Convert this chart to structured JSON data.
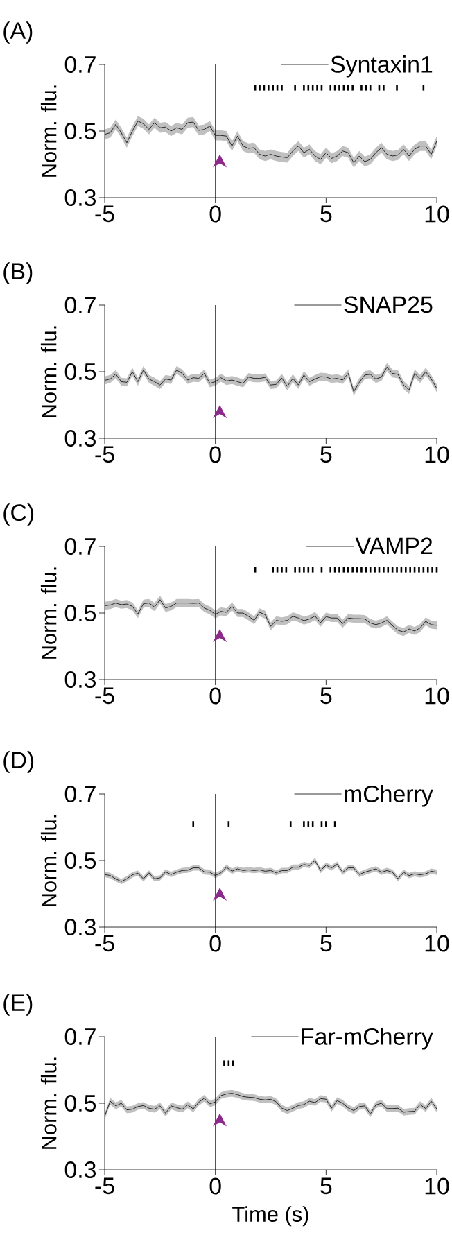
{
  "chart_data": [
    {
      "type": "line",
      "title": "(A)",
      "ylabel": "Norm. flu.",
      "x": [
        -5,
        -4.75,
        -4.5,
        -4.25,
        -4,
        -3.75,
        -3.5,
        -3.25,
        -3,
        -2.75,
        -2.5,
        -2.25,
        -2,
        -1.75,
        -1.5,
        -1.25,
        -1,
        -0.75,
        -0.5,
        -0.25,
        0,
        0.25,
        0.5,
        0.75,
        1,
        1.25,
        1.5,
        1.75,
        2,
        2.25,
        2.5,
        2.75,
        3,
        3.25,
        3.5,
        3.75,
        4,
        4.25,
        4.5,
        4.75,
        5,
        5.25,
        5.5,
        5.75,
        6,
        6.25,
        6.5,
        6.75,
        7,
        7.25,
        7.5,
        7.75,
        8,
        8.25,
        8.5,
        8.75,
        9,
        9.25,
        9.5,
        9.75,
        10
      ],
      "xlim": [
        -5,
        10
      ],
      "ylim": [
        0.3,
        0.7
      ],
      "xticks": [
        -5,
        0,
        5,
        10
      ],
      "yticks": [
        0.3,
        0.5,
        0.7
      ],
      "legend": "top right",
      "ref_lines": [
        {
          "axis": "x",
          "value": 0
        }
      ],
      "series": [
        {
          "name": "Syntaxin1",
          "color": "#000000",
          "values": [
            0.49,
            0.495,
            0.52,
            0.495,
            0.465,
            0.5,
            0.53,
            0.522,
            0.505,
            0.525,
            0.51,
            0.512,
            0.5,
            0.51,
            0.505,
            0.525,
            0.527,
            0.502,
            0.505,
            0.515,
            0.487,
            0.487,
            0.485,
            0.455,
            0.485,
            0.455,
            0.448,
            0.45,
            0.43,
            0.425,
            0.43,
            0.425,
            0.422,
            0.42,
            0.44,
            0.455,
            0.435,
            0.445,
            0.425,
            0.415,
            0.435,
            0.418,
            0.425,
            0.44,
            0.435,
            0.405,
            0.425,
            0.408,
            0.415,
            0.435,
            0.45,
            0.43,
            0.425,
            0.428,
            0.445,
            0.425,
            0.445,
            0.455,
            0.455,
            0.43,
            0.47
          ],
          "lower": [
            0.475,
            0.48,
            0.505,
            0.48,
            0.45,
            0.485,
            0.515,
            0.507,
            0.49,
            0.51,
            0.495,
            0.497,
            0.485,
            0.495,
            0.49,
            0.51,
            0.512,
            0.487,
            0.49,
            0.5,
            0.472,
            0.472,
            0.47,
            0.44,
            0.47,
            0.44,
            0.433,
            0.435,
            0.415,
            0.41,
            0.415,
            0.41,
            0.407,
            0.405,
            0.425,
            0.44,
            0.42,
            0.43,
            0.41,
            0.4,
            0.42,
            0.403,
            0.41,
            0.425,
            0.42,
            0.39,
            0.41,
            0.393,
            0.4,
            0.42,
            0.435,
            0.415,
            0.41,
            0.413,
            0.43,
            0.41,
            0.43,
            0.44,
            0.44,
            0.415,
            0.455
          ],
          "upper": [
            0.505,
            0.51,
            0.535,
            0.51,
            0.48,
            0.515,
            0.545,
            0.537,
            0.52,
            0.54,
            0.525,
            0.527,
            0.515,
            0.525,
            0.52,
            0.54,
            0.542,
            0.517,
            0.52,
            0.53,
            0.502,
            0.502,
            0.5,
            0.47,
            0.5,
            0.47,
            0.463,
            0.465,
            0.445,
            0.44,
            0.445,
            0.44,
            0.437,
            0.435,
            0.455,
            0.47,
            0.45,
            0.46,
            0.44,
            0.43,
            0.45,
            0.433,
            0.44,
            0.455,
            0.45,
            0.42,
            0.44,
            0.423,
            0.43,
            0.45,
            0.465,
            0.445,
            0.44,
            0.443,
            0.46,
            0.44,
            0.46,
            0.47,
            0.47,
            0.445,
            0.485
          ]
        },
        {
          "type": "scatter",
          "color": "#000000",
          "x": [
            1.8,
            2.0,
            2.2,
            2.4,
            2.6,
            2.8,
            3.0,
            3.6,
            4.0,
            4.2,
            4.4,
            4.6,
            4.8,
            5.2,
            5.4,
            5.6,
            5.8,
            6.0,
            6.2,
            6.6,
            6.8,
            7.0,
            7.4,
            7.6,
            8.2,
            9.4
          ],
          "values": [
            0.63,
            0.63,
            0.63,
            0.63,
            0.63,
            0.63,
            0.63,
            0.63,
            0.63,
            0.63,
            0.63,
            0.63,
            0.63,
            0.63,
            0.63,
            0.63,
            0.63,
            0.63,
            0.63,
            0.63,
            0.63,
            0.63,
            0.63,
            0.63,
            0.63,
            0.63
          ]
        }
      ]
    },
    {
      "type": "line",
      "title": "(B)",
      "ylabel": "Norm. flu.",
      "x": [
        -5,
        -4.75,
        -4.5,
        -4.25,
        -4,
        -3.75,
        -3.5,
        -3.25,
        -3,
        -2.75,
        -2.5,
        -2.25,
        -2,
        -1.75,
        -1.5,
        -1.25,
        -1,
        -0.75,
        -0.5,
        -0.25,
        0,
        0.25,
        0.5,
        0.75,
        1,
        1.25,
        1.5,
        1.75,
        2,
        2.25,
        2.5,
        2.75,
        3,
        3.25,
        3.5,
        3.75,
        4,
        4.25,
        4.5,
        4.75,
        5,
        5.25,
        5.5,
        5.75,
        6,
        6.25,
        6.5,
        6.75,
        7,
        7.25,
        7.5,
        7.75,
        8,
        8.25,
        8.5,
        8.75,
        9,
        9.25,
        9.5,
        9.75,
        10
      ],
      "xlim": [
        -5,
        10
      ],
      "ylim": [
        0.3,
        0.7
      ],
      "xticks": [
        -5,
        0,
        5,
        10
      ],
      "yticks": [
        0.3,
        0.5,
        0.7
      ],
      "legend": "top right",
      "ref_lines": [
        {
          "axis": "x",
          "value": 0
        }
      ],
      "series": [
        {
          "name": "SNAP25",
          "color": "#000000",
          "values": [
            0.474,
            0.478,
            0.493,
            0.47,
            0.468,
            0.5,
            0.47,
            0.505,
            0.478,
            0.47,
            0.46,
            0.478,
            0.475,
            0.505,
            0.495,
            0.475,
            0.482,
            0.48,
            0.495,
            0.465,
            0.47,
            0.482,
            0.472,
            0.475,
            0.47,
            0.465,
            0.484,
            0.48,
            0.48,
            0.483,
            0.46,
            0.462,
            0.481,
            0.456,
            0.48,
            0.46,
            0.49,
            0.47,
            0.478,
            0.485,
            0.484,
            0.478,
            0.48,
            0.475,
            0.495,
            0.44,
            0.468,
            0.49,
            0.492,
            0.478,
            0.484,
            0.514,
            0.495,
            0.492,
            0.46,
            0.445,
            0.495,
            0.478,
            0.5,
            0.478,
            0.45
          ],
          "lower": [
            0.462,
            0.466,
            0.481,
            0.458,
            0.456,
            0.488,
            0.458,
            0.493,
            0.466,
            0.458,
            0.448,
            0.466,
            0.463,
            0.493,
            0.483,
            0.463,
            0.47,
            0.468,
            0.483,
            0.453,
            0.458,
            0.47,
            0.46,
            0.463,
            0.458,
            0.453,
            0.472,
            0.468,
            0.468,
            0.471,
            0.448,
            0.45,
            0.469,
            0.444,
            0.468,
            0.448,
            0.478,
            0.458,
            0.466,
            0.473,
            0.472,
            0.466,
            0.468,
            0.463,
            0.483,
            0.428,
            0.456,
            0.478,
            0.48,
            0.466,
            0.472,
            0.502,
            0.483,
            0.48,
            0.448,
            0.433,
            0.483,
            0.466,
            0.488,
            0.466,
            0.438
          ],
          "upper": [
            0.486,
            0.49,
            0.505,
            0.482,
            0.48,
            0.512,
            0.482,
            0.517,
            0.49,
            0.482,
            0.472,
            0.49,
            0.487,
            0.517,
            0.507,
            0.487,
            0.494,
            0.492,
            0.507,
            0.477,
            0.482,
            0.494,
            0.484,
            0.487,
            0.483,
            0.477,
            0.496,
            0.492,
            0.492,
            0.495,
            0.472,
            0.474,
            0.493,
            0.468,
            0.492,
            0.472,
            0.502,
            0.482,
            0.49,
            0.497,
            0.496,
            0.49,
            0.492,
            0.487,
            0.507,
            0.452,
            0.48,
            0.502,
            0.504,
            0.49,
            0.496,
            0.526,
            0.507,
            0.504,
            0.472,
            0.457,
            0.507,
            0.49,
            0.512,
            0.49,
            0.462
          ]
        }
      ]
    },
    {
      "type": "line",
      "title": "(C)",
      "ylabel": "Norm. flu.",
      "x": [
        -5,
        -4.75,
        -4.5,
        -4.25,
        -4,
        -3.75,
        -3.5,
        -3.25,
        -3,
        -2.75,
        -2.5,
        -2.25,
        -2,
        -1.75,
        -1.5,
        -1.25,
        -1,
        -0.75,
        -0.5,
        -0.25,
        0,
        0.25,
        0.5,
        0.75,
        1,
        1.25,
        1.5,
        1.75,
        2,
        2.25,
        2.5,
        2.75,
        3,
        3.25,
        3.5,
        3.75,
        4,
        4.25,
        4.5,
        4.75,
        5,
        5.25,
        5.5,
        5.75,
        6,
        6.25,
        6.5,
        6.75,
        7,
        7.25,
        7.5,
        7.75,
        8,
        8.25,
        8.5,
        8.75,
        9,
        9.25,
        9.5,
        9.75,
        10
      ],
      "xlim": [
        -5,
        10
      ],
      "ylim": [
        0.3,
        0.7
      ],
      "xticks": [
        -5,
        0,
        5,
        10
      ],
      "yticks": [
        0.3,
        0.5,
        0.7
      ],
      "legend": "top right",
      "ref_lines": [
        {
          "axis": "x",
          "value": 0
        }
      ],
      "series": [
        {
          "name": "VAMP2",
          "color": "#000000",
          "values": [
            0.522,
            0.524,
            0.53,
            0.525,
            0.527,
            0.52,
            0.497,
            0.528,
            0.53,
            0.518,
            0.54,
            0.515,
            0.52,
            0.53,
            0.53,
            0.53,
            0.529,
            0.53,
            0.515,
            0.508,
            0.496,
            0.505,
            0.502,
            0.52,
            0.5,
            0.5,
            0.49,
            0.478,
            0.502,
            0.495,
            0.46,
            0.478,
            0.475,
            0.478,
            0.49,
            0.485,
            0.477,
            0.482,
            0.491,
            0.471,
            0.489,
            0.485,
            0.485,
            0.468,
            0.485,
            0.483,
            0.483,
            0.482,
            0.47,
            0.465,
            0.47,
            0.478,
            0.462,
            0.448,
            0.443,
            0.452,
            0.446,
            0.455,
            0.475,
            0.465,
            0.463
          ],
          "lower": [
            0.51,
            0.512,
            0.518,
            0.513,
            0.515,
            0.508,
            0.485,
            0.516,
            0.518,
            0.506,
            0.528,
            0.503,
            0.508,
            0.518,
            0.518,
            0.518,
            0.517,
            0.518,
            0.503,
            0.496,
            0.484,
            0.493,
            0.49,
            0.508,
            0.488,
            0.488,
            0.478,
            0.466,
            0.49,
            0.483,
            0.448,
            0.466,
            0.463,
            0.466,
            0.478,
            0.473,
            0.465,
            0.47,
            0.479,
            0.459,
            0.477,
            0.473,
            0.473,
            0.456,
            0.473,
            0.471,
            0.471,
            0.47,
            0.458,
            0.453,
            0.458,
            0.466,
            0.45,
            0.436,
            0.431,
            0.44,
            0.434,
            0.443,
            0.463,
            0.453,
            0.451
          ],
          "upper": [
            0.534,
            0.536,
            0.542,
            0.537,
            0.539,
            0.532,
            0.509,
            0.54,
            0.542,
            0.53,
            0.552,
            0.527,
            0.532,
            0.542,
            0.542,
            0.542,
            0.541,
            0.542,
            0.527,
            0.52,
            0.508,
            0.517,
            0.514,
            0.532,
            0.512,
            0.512,
            0.502,
            0.49,
            0.514,
            0.507,
            0.472,
            0.49,
            0.487,
            0.49,
            0.502,
            0.497,
            0.489,
            0.494,
            0.503,
            0.483,
            0.501,
            0.497,
            0.497,
            0.48,
            0.497,
            0.495,
            0.495,
            0.494,
            0.482,
            0.477,
            0.482,
            0.49,
            0.474,
            0.46,
            0.455,
            0.464,
            0.458,
            0.467,
            0.487,
            0.477,
            0.475
          ]
        },
        {
          "type": "scatter",
          "color": "#000000",
          "x": [
            1.8,
            2.6,
            2.8,
            3.0,
            3.2,
            3.6,
            3.8,
            4.0,
            4.2,
            4.4,
            4.8,
            5.2,
            5.4,
            5.6,
            5.8,
            6.0,
            6.2,
            6.4,
            6.6,
            6.8,
            7.0,
            7.2,
            7.4,
            7.6,
            7.8,
            8.0,
            8.2,
            8.4,
            8.6,
            8.8,
            9.0,
            9.2,
            9.4,
            9.6,
            9.8,
            10.0
          ],
          "values": [
            0.63,
            0.63,
            0.63,
            0.63,
            0.63,
            0.63,
            0.63,
            0.63,
            0.63,
            0.63,
            0.63,
            0.63,
            0.63,
            0.63,
            0.63,
            0.63,
            0.63,
            0.63,
            0.63,
            0.63,
            0.63,
            0.63,
            0.63,
            0.63,
            0.63,
            0.63,
            0.63,
            0.63,
            0.63,
            0.63,
            0.63,
            0.63,
            0.63,
            0.63,
            0.63,
            0.63
          ]
        }
      ]
    },
    {
      "type": "line",
      "title": "(D)",
      "ylabel": "Norm. flu.",
      "x": [
        -5,
        -4.75,
        -4.5,
        -4.25,
        -4,
        -3.75,
        -3.5,
        -3.25,
        -3,
        -2.75,
        -2.5,
        -2.25,
        -2,
        -1.75,
        -1.5,
        -1.25,
        -1,
        -0.75,
        -0.5,
        -0.25,
        0,
        0.25,
        0.5,
        0.75,
        1,
        1.25,
        1.5,
        1.75,
        2,
        2.25,
        2.5,
        2.75,
        3,
        3.25,
        3.5,
        3.75,
        4,
        4.25,
        4.5,
        4.75,
        5,
        5.25,
        5.5,
        5.75,
        6,
        6.25,
        6.5,
        6.75,
        7,
        7.25,
        7.5,
        7.75,
        8,
        8.25,
        8.5,
        8.75,
        9,
        9.25,
        9.5,
        9.75,
        10
      ],
      "xlim": [
        -5,
        10
      ],
      "ylim": [
        0.3,
        0.7
      ],
      "xticks": [
        -5,
        0,
        5,
        10
      ],
      "yticks": [
        0.3,
        0.5,
        0.7
      ],
      "legend": "top right",
      "ref_lines": [
        {
          "axis": "x",
          "value": 0
        }
      ],
      "series": [
        {
          "name": "mCherry",
          "color": "#000000",
          "values": [
            0.458,
            0.455,
            0.445,
            0.437,
            0.445,
            0.457,
            0.462,
            0.445,
            0.463,
            0.445,
            0.448,
            0.466,
            0.458,
            0.465,
            0.47,
            0.471,
            0.478,
            0.478,
            0.466,
            0.465,
            0.455,
            0.463,
            0.48,
            0.468,
            0.475,
            0.47,
            0.472,
            0.47,
            0.472,
            0.468,
            0.47,
            0.463,
            0.47,
            0.47,
            0.48,
            0.48,
            0.488,
            0.485,
            0.5,
            0.47,
            0.486,
            0.478,
            0.489,
            0.465,
            0.478,
            0.478,
            0.458,
            0.465,
            0.47,
            0.475,
            0.465,
            0.47,
            0.465,
            0.445,
            0.465,
            0.455,
            0.46,
            0.457,
            0.46,
            0.468,
            0.465
          ],
          "lower": [
            0.45,
            0.447,
            0.437,
            0.429,
            0.437,
            0.449,
            0.454,
            0.437,
            0.455,
            0.437,
            0.44,
            0.458,
            0.45,
            0.457,
            0.462,
            0.463,
            0.47,
            0.47,
            0.458,
            0.457,
            0.447,
            0.455,
            0.472,
            0.46,
            0.467,
            0.462,
            0.464,
            0.462,
            0.464,
            0.46,
            0.462,
            0.455,
            0.462,
            0.462,
            0.472,
            0.472,
            0.48,
            0.477,
            0.492,
            0.462,
            0.478,
            0.47,
            0.481,
            0.457,
            0.47,
            0.47,
            0.45,
            0.457,
            0.462,
            0.467,
            0.457,
            0.462,
            0.457,
            0.437,
            0.457,
            0.447,
            0.452,
            0.449,
            0.452,
            0.46,
            0.457
          ],
          "upper": [
            0.466,
            0.463,
            0.453,
            0.445,
            0.453,
            0.465,
            0.47,
            0.453,
            0.471,
            0.453,
            0.456,
            0.474,
            0.466,
            0.473,
            0.478,
            0.479,
            0.486,
            0.486,
            0.474,
            0.473,
            0.463,
            0.471,
            0.488,
            0.476,
            0.483,
            0.478,
            0.48,
            0.478,
            0.48,
            0.476,
            0.478,
            0.471,
            0.478,
            0.478,
            0.488,
            0.488,
            0.496,
            0.493,
            0.508,
            0.478,
            0.494,
            0.486,
            0.497,
            0.473,
            0.486,
            0.486,
            0.466,
            0.473,
            0.478,
            0.483,
            0.473,
            0.478,
            0.473,
            0.453,
            0.473,
            0.463,
            0.468,
            0.465,
            0.468,
            0.476,
            0.473
          ]
        },
        {
          "type": "scatter",
          "color": "#000000",
          "x": [
            -1.0,
            0.6,
            3.4,
            4.0,
            4.2,
            4.4,
            4.8,
            5.0,
            5.4
          ],
          "values": [
            0.61,
            0.61,
            0.61,
            0.61,
            0.61,
            0.61,
            0.61,
            0.61,
            0.61
          ]
        }
      ]
    },
    {
      "type": "line",
      "title": "(E)",
      "xlabel": "Time (s)",
      "ylabel": "Norm. flu.",
      "x": [
        -5,
        -4.75,
        -4.5,
        -4.25,
        -4,
        -3.75,
        -3.5,
        -3.25,
        -3,
        -2.75,
        -2.5,
        -2.25,
        -2,
        -1.75,
        -1.5,
        -1.25,
        -1,
        -0.75,
        -0.5,
        -0.25,
        0,
        0.25,
        0.5,
        0.75,
        1,
        1.25,
        1.5,
        1.75,
        2,
        2.25,
        2.5,
        2.75,
        3,
        3.25,
        3.5,
        3.75,
        4,
        4.25,
        4.5,
        4.75,
        5,
        5.25,
        5.5,
        5.75,
        6,
        6.25,
        6.5,
        6.75,
        7,
        7.25,
        7.5,
        7.75,
        8,
        8.25,
        8.5,
        8.75,
        9,
        9.25,
        9.5,
        9.75,
        10
      ],
      "xlim": [
        -5,
        10
      ],
      "ylim": [
        0.3,
        0.7
      ],
      "xticks": [
        -5,
        0,
        5,
        10
      ],
      "yticks": [
        0.3,
        0.5,
        0.7
      ],
      "legend": "top right",
      "ref_lines": [
        {
          "axis": "x",
          "value": 0
        }
      ],
      "series": [
        {
          "name": "Far-mCherry",
          "color": "#000000",
          "values": [
            0.461,
            0.506,
            0.492,
            0.5,
            0.48,
            0.482,
            0.49,
            0.493,
            0.485,
            0.482,
            0.492,
            0.47,
            0.492,
            0.487,
            0.482,
            0.495,
            0.483,
            0.503,
            0.515,
            0.498,
            0.504,
            0.523,
            0.528,
            0.53,
            0.526,
            0.52,
            0.518,
            0.517,
            0.512,
            0.51,
            0.512,
            0.504,
            0.485,
            0.478,
            0.485,
            0.493,
            0.496,
            0.506,
            0.502,
            0.514,
            0.512,
            0.485,
            0.508,
            0.5,
            0.486,
            0.478,
            0.49,
            0.492,
            0.468,
            0.495,
            0.5,
            0.484,
            0.484,
            0.485,
            0.473,
            0.475,
            0.476,
            0.496,
            0.484,
            0.506,
            0.483
          ],
          "lower": [
            0.451,
            0.496,
            0.482,
            0.49,
            0.47,
            0.472,
            0.48,
            0.483,
            0.475,
            0.472,
            0.482,
            0.46,
            0.482,
            0.476,
            0.472,
            0.485,
            0.473,
            0.493,
            0.505,
            0.488,
            0.494,
            0.513,
            0.518,
            0.52,
            0.516,
            0.51,
            0.508,
            0.507,
            0.502,
            0.5,
            0.502,
            0.494,
            0.475,
            0.468,
            0.475,
            0.483,
            0.486,
            0.496,
            0.492,
            0.504,
            0.502,
            0.475,
            0.498,
            0.49,
            0.476,
            0.468,
            0.48,
            0.482,
            0.458,
            0.485,
            0.49,
            0.474,
            0.474,
            0.475,
            0.463,
            0.465,
            0.466,
            0.486,
            0.474,
            0.496,
            0.473
          ],
          "upper": [
            0.471,
            0.516,
            0.502,
            0.51,
            0.49,
            0.492,
            0.5,
            0.503,
            0.495,
            0.492,
            0.502,
            0.48,
            0.502,
            0.497,
            0.492,
            0.505,
            0.493,
            0.513,
            0.525,
            0.508,
            0.514,
            0.533,
            0.538,
            0.54,
            0.536,
            0.53,
            0.528,
            0.527,
            0.522,
            0.52,
            0.522,
            0.514,
            0.495,
            0.488,
            0.495,
            0.503,
            0.506,
            0.516,
            0.512,
            0.524,
            0.522,
            0.495,
            0.518,
            0.51,
            0.496,
            0.488,
            0.5,
            0.502,
            0.478,
            0.505,
            0.51,
            0.494,
            0.494,
            0.495,
            0.483,
            0.485,
            0.486,
            0.506,
            0.494,
            0.516,
            0.493
          ]
        },
        {
          "type": "scatter",
          "color": "#000000",
          "x": [
            0.4,
            0.6,
            0.8
          ],
          "values": [
            0.62,
            0.62,
            0.62
          ]
        }
      ]
    }
  ]
}
